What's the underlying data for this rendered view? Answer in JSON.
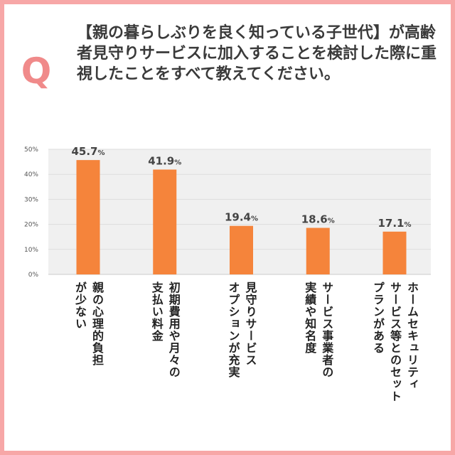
{
  "question": {
    "mark": "Q",
    "text": "【親の暮らしぶりを良く知っている子世代】が高齢者見守りサービスに加入することを検討した際に重視したことをすべて教えてください。"
  },
  "colors": {
    "bar": "#f5843b",
    "frame": "#f7a7a7",
    "plot_bg": "#f0f0f0",
    "q_mark": "#f08a8a"
  },
  "chart_data": {
    "type": "bar",
    "categories": [
      "親の心理的負担が少ない",
      "初期費用や月々の支払い料金",
      "見守りサービスオプションが充実",
      "サービス事業者の実績や知名度",
      "ホームセキュリティサービス等とのセットプランがある"
    ],
    "category_lines": [
      [
        "親の心理的負担",
        "が少ない"
      ],
      [
        "初期費用や月々の",
        "支払い料金"
      ],
      [
        "見守りサービス",
        "オプションが充実"
      ],
      [
        "サービス事業者の",
        "実績や知名度"
      ],
      [
        "ホームセキュリティ",
        "サービス等とのセット",
        "プランがある"
      ]
    ],
    "values": [
      45.7,
      41.9,
      19.4,
      18.6,
      17.1
    ],
    "value_labels": [
      "45.7",
      "41.9",
      "19.4",
      "18.6",
      "17.1"
    ],
    "value_unit": "%",
    "yticks": [
      "0%",
      "10%",
      "20%",
      "30%",
      "40%",
      "50%"
    ],
    "ylim": [
      0,
      50
    ],
    "grid": true,
    "legend": "none",
    "xlabel": "",
    "ylabel": ""
  }
}
